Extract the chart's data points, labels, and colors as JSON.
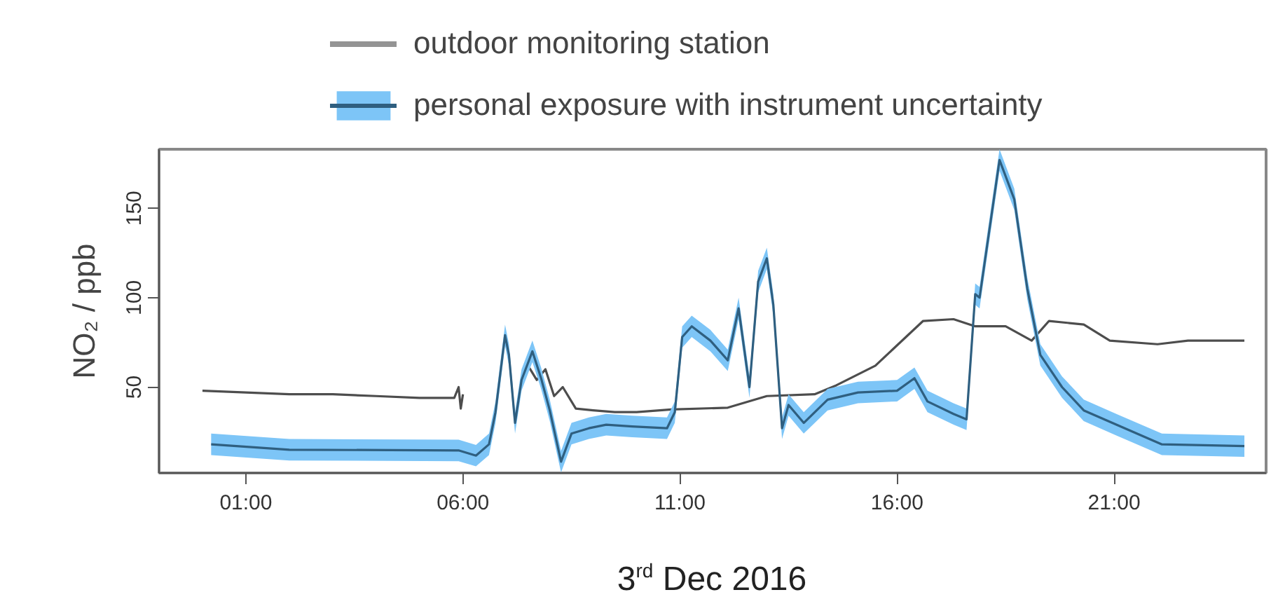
{
  "chart_data": {
    "type": "line",
    "xlabel": "3$^{rd}$ Dec 2016",
    "ylabel": "NO₂ / ppb",
    "xlim": [
      -1,
      24.5
    ],
    "ylim": [
      2,
      183
    ],
    "xticks": [
      {
        "value": 1,
        "label": "01:00"
      },
      {
        "value": 6,
        "label": "06:00"
      },
      {
        "value": 11,
        "label": "11:00"
      },
      {
        "value": 16,
        "label": "16:00"
      },
      {
        "value": 21,
        "label": "21:00"
      }
    ],
    "yticks": [
      50,
      100,
      150
    ],
    "grid": false,
    "legend": "top",
    "series": [
      {
        "name": "outdoor monitoring station",
        "color": "#4d4d4d",
        "x": [
          0,
          1,
          2,
          3,
          4,
          5,
          5.8,
          5.9,
          5.95,
          6.0,
          6.05,
          7.5,
          7.7,
          7.9,
          8.1,
          8.3,
          8.6,
          9.0,
          9.5,
          10.0,
          10.8,
          12.1,
          13.0,
          14.1,
          14.6,
          15.5,
          16.6,
          17.3,
          17.8,
          18.5,
          19.1,
          19.5,
          20.3,
          20.9,
          22.0,
          22.7,
          24.0
        ],
        "values": [
          48,
          47,
          46,
          46,
          45,
          44,
          44,
          50,
          38,
          46,
          null,
          62,
          54,
          60,
          45,
          50,
          38,
          37,
          36,
          36,
          37.5,
          38.5,
          45,
          46,
          51,
          62,
          87,
          88,
          84,
          84,
          76,
          87,
          85,
          76,
          74,
          76,
          76
        ]
      },
      {
        "name": "personal exposure with instrument uncertainty",
        "color": "#2f5f80",
        "x": [
          0.2,
          2.0,
          5.9,
          6.3,
          6.6,
          6.75,
          6.97,
          7.06,
          7.2,
          7.35,
          7.6,
          7.8,
          8.0,
          8.26,
          8.5,
          8.9,
          9.3,
          9.9,
          10.7,
          10.88,
          11.05,
          11.27,
          11.7,
          12.1,
          12.35,
          12.6,
          12.8,
          13.0,
          13.15,
          13.35,
          13.5,
          13.85,
          14.4,
          15.1,
          16.0,
          16.4,
          16.7,
          17.3,
          17.6,
          17.8,
          17.9,
          18.36,
          18.7,
          19.0,
          19.3,
          19.8,
          20.3,
          21.05,
          22.1,
          24.0
        ],
        "values": [
          18,
          15,
          14.6,
          11.7,
          18,
          36,
          79,
          68,
          30,
          54,
          70,
          55,
          37,
          8.3,
          24,
          27,
          29,
          28,
          27,
          36,
          78,
          84,
          76,
          65,
          94,
          50,
          109,
          122,
          96,
          27,
          40,
          30,
          43,
          47,
          48,
          55,
          42,
          35,
          32,
          102,
          100,
          177,
          155,
          105,
          68,
          50,
          37,
          29,
          18,
          17
        ],
        "lower": [
          12,
          9,
          8.6,
          5.7,
          12,
          30,
          73,
          62,
          24,
          48,
          64,
          49,
          31,
          2.3,
          18,
          21,
          23,
          22,
          21,
          30,
          72,
          78,
          70,
          59,
          88,
          44,
          103,
          116,
          90,
          21,
          34,
          24,
          37,
          41,
          42,
          49,
          36,
          29,
          26,
          96,
          94,
          171,
          149,
          99,
          62,
          44,
          31,
          23,
          12,
          11
        ],
        "upper": [
          24,
          21,
          20.6,
          17.7,
          24,
          42,
          85,
          74,
          36,
          60,
          76,
          61,
          43,
          14.3,
          30,
          33,
          35,
          34,
          33,
          42,
          84,
          90,
          82,
          71,
          100,
          56,
          115,
          128,
          102,
          33,
          46,
          36,
          49,
          53,
          54,
          61,
          48,
          41,
          38,
          108,
          106,
          183,
          161,
          111,
          74,
          56,
          43,
          35,
          24,
          23
        ]
      }
    ]
  }
}
